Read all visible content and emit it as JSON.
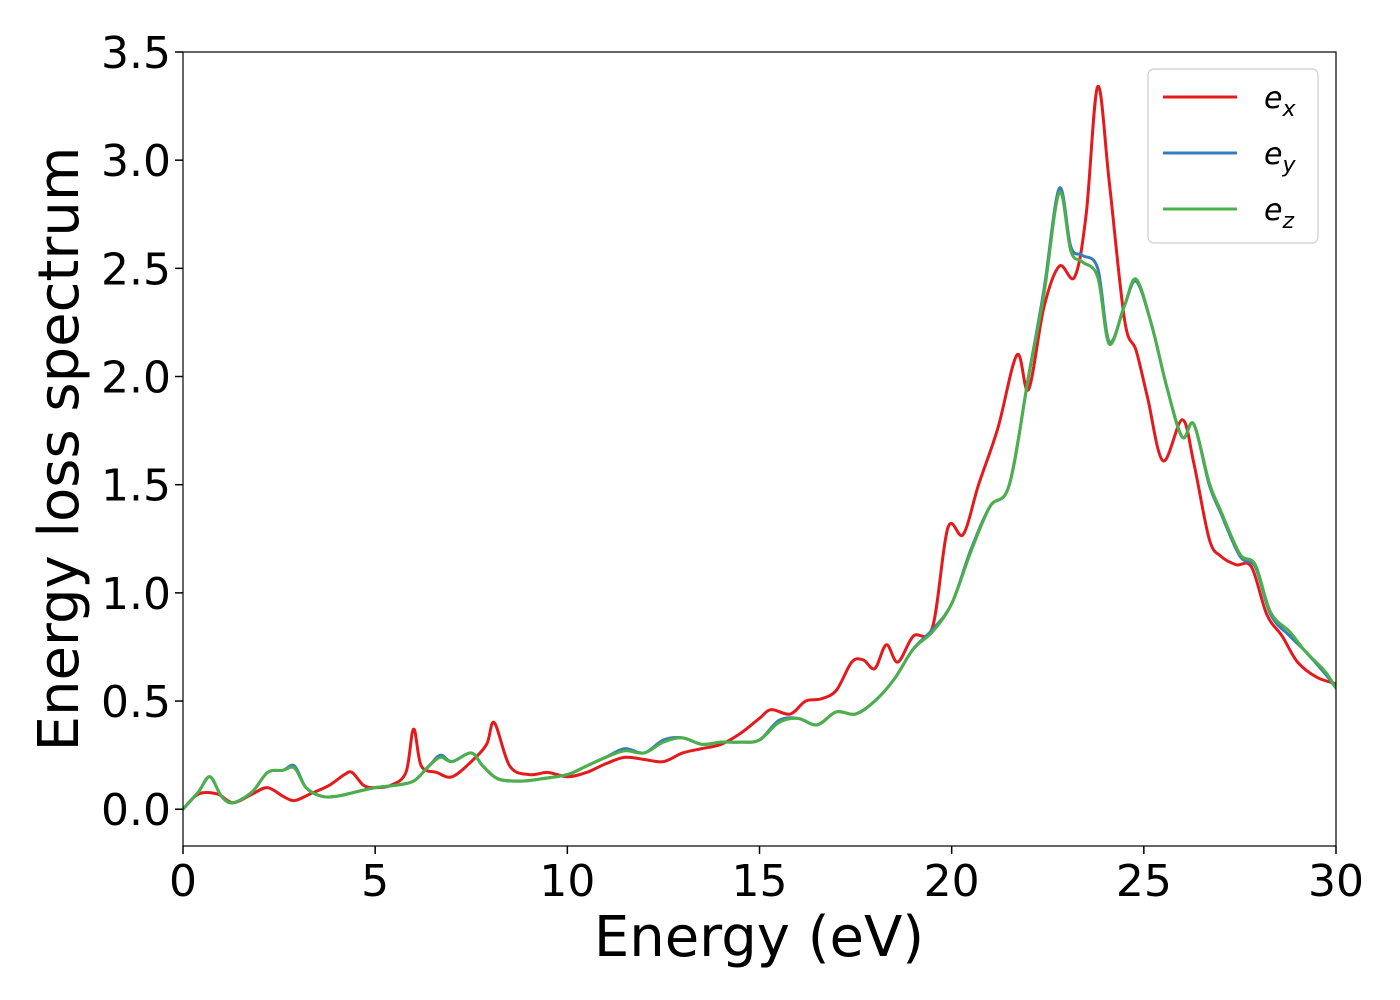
{
  "chart_data": {
    "type": "line",
    "xlabel": "Energy (eV)",
    "ylabel": "Energy loss spectrum",
    "xlim": [
      0,
      30
    ],
    "ylim": [
      -0.17,
      3.5
    ],
    "xticks": [
      0,
      5,
      10,
      15,
      20,
      25,
      30
    ],
    "xtick_labels": [
      "0",
      "5",
      "10",
      "15",
      "20",
      "25",
      "30"
    ],
    "yticks": [
      0.0,
      0.5,
      1.0,
      1.5,
      2.0,
      2.5,
      3.0,
      3.5
    ],
    "ytick_labels": [
      "0.0",
      "0.5",
      "1.0",
      "1.5",
      "2.0",
      "2.5",
      "3.0",
      "3.5"
    ],
    "grid": false,
    "legend_position": "top-right",
    "series": [
      {
        "name": "e",
        "subscript": "x",
        "color": "#e41a1c",
        "x": [
          0,
          0.4,
          0.9,
          1.3,
          1.8,
          2.2,
          2.6,
          2.9,
          3.3,
          3.8,
          4.2,
          4.4,
          4.7,
          5.0,
          5.4,
          5.8,
          6.0,
          6.2,
          6.6,
          7.0,
          7.5,
          7.9,
          8.1,
          8.5,
          9.0,
          9.5,
          10.0,
          10.5,
          11.0,
          11.5,
          12.0,
          12.5,
          13.0,
          13.5,
          14.0,
          14.5,
          15.0,
          15.3,
          15.8,
          16.2,
          16.6,
          17.0,
          17.4,
          17.7,
          18.0,
          18.3,
          18.6,
          19.0,
          19.5,
          19.9,
          20.3,
          20.7,
          21.2,
          21.7,
          22.0,
          22.4,
          22.8,
          23.2,
          23.5,
          23.8,
          24.1,
          24.5,
          24.8,
          25.1,
          25.5,
          26.0,
          26.3,
          26.7,
          27.0,
          27.4,
          27.8,
          28.2,
          28.6,
          29.0,
          29.5,
          30.0
        ],
        "y": [
          0.0,
          0.07,
          0.07,
          0.03,
          0.07,
          0.1,
          0.06,
          0.04,
          0.07,
          0.11,
          0.16,
          0.17,
          0.11,
          0.1,
          0.11,
          0.17,
          0.37,
          0.2,
          0.17,
          0.15,
          0.22,
          0.3,
          0.4,
          0.2,
          0.16,
          0.17,
          0.15,
          0.17,
          0.21,
          0.24,
          0.23,
          0.22,
          0.26,
          0.28,
          0.3,
          0.35,
          0.42,
          0.46,
          0.44,
          0.5,
          0.51,
          0.55,
          0.68,
          0.69,
          0.65,
          0.76,
          0.68,
          0.8,
          0.84,
          1.3,
          1.27,
          1.5,
          1.76,
          2.1,
          1.94,
          2.32,
          2.51,
          2.46,
          2.75,
          3.34,
          2.9,
          2.26,
          2.12,
          1.9,
          1.61,
          1.8,
          1.6,
          1.25,
          1.17,
          1.13,
          1.12,
          0.9,
          0.8,
          0.68,
          0.61,
          0.58
        ]
      },
      {
        "name": "e",
        "subscript": "y",
        "color": "#377eb8",
        "x": [
          0,
          0.4,
          0.7,
          1.0,
          1.3,
          1.8,
          2.2,
          2.6,
          2.9,
          3.2,
          3.6,
          4.0,
          4.5,
          5.0,
          5.5,
          6.0,
          6.4,
          6.7,
          7.0,
          7.5,
          7.8,
          8.2,
          8.8,
          9.3,
          10.0,
          10.5,
          11.0,
          11.5,
          12.0,
          12.5,
          13.0,
          13.5,
          14.0,
          14.5,
          15.0,
          15.5,
          16.0,
          16.5,
          17.0,
          17.5,
          18.0,
          18.5,
          19.0,
          19.5,
          20.0,
          20.5,
          21.0,
          21.5,
          22.0,
          22.4,
          22.8,
          23.1,
          23.4,
          23.8,
          24.1,
          24.5,
          24.8,
          25.2,
          25.6,
          26.0,
          26.3,
          26.7,
          27.0,
          27.5,
          27.9,
          28.3,
          28.8,
          29.2,
          29.7,
          30.0
        ],
        "y": [
          0.0,
          0.08,
          0.15,
          0.06,
          0.03,
          0.08,
          0.17,
          0.18,
          0.2,
          0.1,
          0.06,
          0.06,
          0.08,
          0.1,
          0.11,
          0.13,
          0.2,
          0.25,
          0.22,
          0.26,
          0.2,
          0.14,
          0.13,
          0.14,
          0.16,
          0.2,
          0.24,
          0.28,
          0.26,
          0.32,
          0.33,
          0.3,
          0.31,
          0.31,
          0.32,
          0.41,
          0.42,
          0.39,
          0.45,
          0.44,
          0.5,
          0.6,
          0.74,
          0.83,
          0.95,
          1.2,
          1.4,
          1.5,
          2.0,
          2.4,
          2.87,
          2.6,
          2.56,
          2.5,
          2.16,
          2.33,
          2.44,
          2.24,
          1.95,
          1.72,
          1.78,
          1.5,
          1.37,
          1.17,
          1.12,
          0.9,
          0.8,
          0.73,
          0.63,
          0.56
        ]
      },
      {
        "name": "e",
        "subscript": "z",
        "color": "#4daf4a",
        "x": [
          0,
          0.4,
          0.7,
          1.0,
          1.3,
          1.8,
          2.2,
          2.6,
          2.9,
          3.2,
          3.6,
          4.0,
          4.5,
          5.0,
          5.5,
          6.0,
          6.4,
          6.7,
          7.0,
          7.5,
          7.8,
          8.2,
          8.8,
          9.3,
          10.0,
          10.5,
          11.0,
          11.5,
          12.0,
          12.5,
          13.0,
          13.5,
          14.0,
          14.5,
          15.0,
          15.5,
          16.0,
          16.5,
          17.0,
          17.5,
          18.0,
          18.5,
          19.0,
          19.5,
          20.0,
          20.5,
          21.0,
          21.5,
          22.0,
          22.4,
          22.8,
          23.1,
          23.4,
          23.8,
          24.1,
          24.5,
          24.8,
          25.2,
          25.6,
          26.0,
          26.3,
          26.7,
          27.0,
          27.5,
          27.9,
          28.3,
          28.8,
          29.2,
          29.7,
          30.0
        ],
        "y": [
          0.0,
          0.08,
          0.15,
          0.06,
          0.03,
          0.08,
          0.17,
          0.18,
          0.19,
          0.1,
          0.06,
          0.06,
          0.08,
          0.1,
          0.11,
          0.13,
          0.2,
          0.24,
          0.22,
          0.26,
          0.2,
          0.14,
          0.13,
          0.14,
          0.16,
          0.2,
          0.24,
          0.27,
          0.26,
          0.31,
          0.33,
          0.3,
          0.31,
          0.31,
          0.32,
          0.4,
          0.42,
          0.39,
          0.45,
          0.44,
          0.5,
          0.6,
          0.74,
          0.82,
          0.95,
          1.19,
          1.4,
          1.5,
          2.0,
          2.38,
          2.85,
          2.58,
          2.53,
          2.46,
          2.15,
          2.33,
          2.45,
          2.24,
          1.95,
          1.72,
          1.78,
          1.51,
          1.38,
          1.18,
          1.13,
          0.91,
          0.82,
          0.73,
          0.64,
          0.56
        ]
      }
    ]
  }
}
